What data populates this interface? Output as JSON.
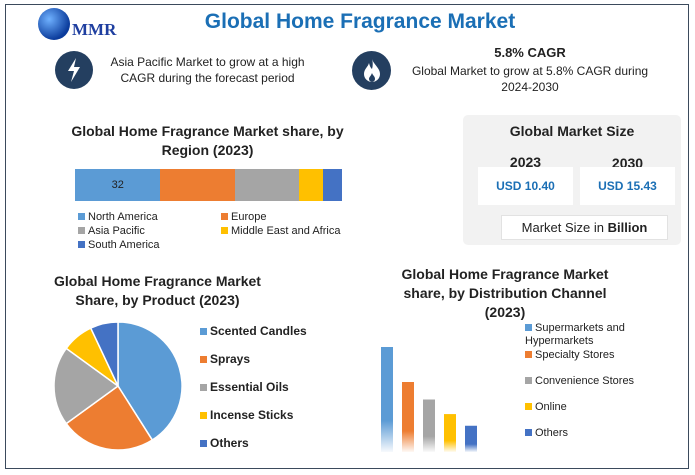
{
  "header": {
    "logo_text": "MMR",
    "title": "Global Home Fragrance Market"
  },
  "highlights": [
    {
      "icon": "lightning-icon",
      "heading": "",
      "text": "Asia Pacific Market to grow at a high CAGR during the forecast period"
    },
    {
      "icon": "flame-icon",
      "heading": "5.8% CAGR",
      "text": "Global Market to grow at 5.8% CAGR during 2024-2030"
    }
  ],
  "market_size": {
    "title": "Global Market Size",
    "years": [
      "2023",
      "2030"
    ],
    "values": [
      "USD 10.40",
      "USD 15.43"
    ],
    "unit_prefix": "Market Size in ",
    "unit_bold": "Billion"
  },
  "colors": {
    "blue": "#5b9bd5",
    "orange": "#ed7d31",
    "gray": "#a5a5a5",
    "yellow": "#ffc000",
    "darkblue": "#4472c4",
    "title": "#1b6fb5"
  },
  "chart_data": [
    {
      "type": "bar",
      "orientation": "horizontal-stacked",
      "title": "Global Home Fragrance Market share, by Region (2023)",
      "series": [
        {
          "name": "North America",
          "values": [
            32
          ],
          "label": "32"
        },
        {
          "name": "Europe",
          "values": [
            28
          ]
        },
        {
          "name": "Asia Pacific",
          "values": [
            24
          ]
        },
        {
          "name": "Middle East and Africa",
          "values": [
            9
          ]
        },
        {
          "name": "South America",
          "values": [
            7
          ]
        }
      ],
      "legend": "bottom"
    },
    {
      "type": "pie",
      "title": "Global Home Fragrance Market Share, by Product (2023)",
      "categories": [
        "Scented Candles",
        "Sprays",
        "Essential Oils",
        "Incense Sticks",
        "Others"
      ],
      "values": [
        41,
        24,
        20,
        8,
        7
      ],
      "legend": "right"
    },
    {
      "type": "bar",
      "title": "Global Home Fragrance Market share, by Distribution Channel (2023)",
      "categories": [
        "Supermarkets and Hypermarkets",
        "Specialty Stores",
        "Convenience Stores",
        "Online",
        "Others"
      ],
      "values": [
        36,
        24,
        18,
        13,
        9
      ],
      "legend": "right"
    }
  ]
}
